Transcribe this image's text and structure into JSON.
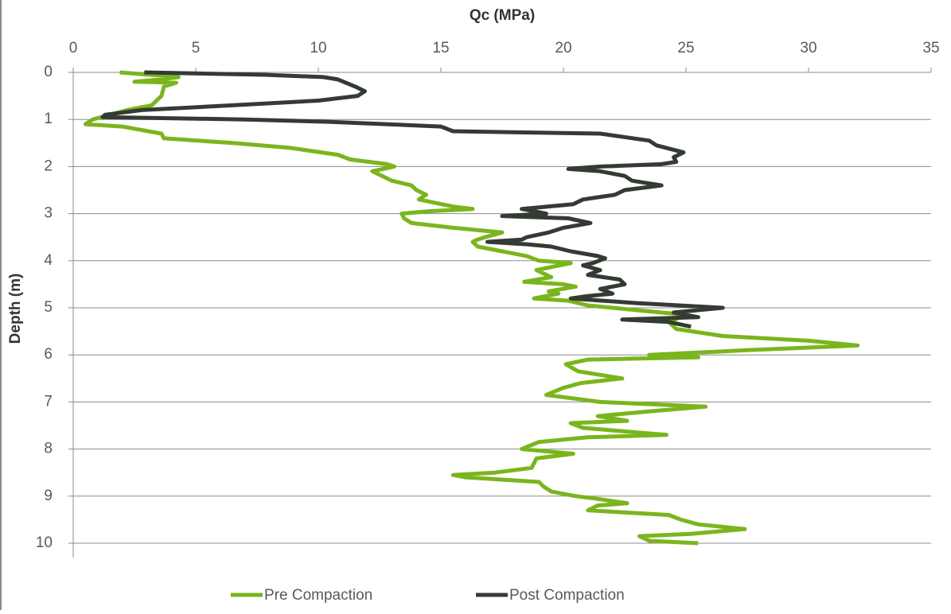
{
  "chart_data": {
    "type": "line",
    "title": "Qc (MPa)",
    "y_label": "Depth (m)",
    "xlim": [
      0,
      35
    ],
    "xticks": [
      0,
      5,
      10,
      15,
      20,
      25,
      30,
      35
    ],
    "ylim": [
      0,
      10
    ],
    "yticks": [
      0,
      1,
      2,
      3,
      4,
      5,
      6,
      7,
      8,
      9,
      10
    ],
    "y_inverted": true,
    "x_axis_top": true,
    "grid": true,
    "series": [
      {
        "name": "Pre Compaction",
        "color": "#7ab51d",
        "y": [
          0.0,
          0.1,
          0.15,
          0.2,
          0.22,
          0.3,
          0.5,
          0.7,
          0.8,
          0.9,
          1.0,
          1.1,
          1.15,
          1.3,
          1.4,
          1.5,
          1.6,
          1.75,
          1.85,
          1.95,
          2.0,
          2.1,
          2.3,
          2.4,
          2.5,
          2.6,
          2.7,
          2.85,
          2.9,
          2.95,
          3.0,
          3.1,
          3.2,
          3.3,
          3.4,
          3.5,
          3.55,
          3.6,
          3.7,
          3.8,
          3.9,
          4.0,
          4.05,
          4.2,
          4.35,
          4.45,
          4.5,
          4.55,
          4.65,
          4.7,
          4.8,
          4.85,
          4.95,
          5.05,
          5.15,
          5.3,
          5.45,
          5.6,
          5.7,
          5.8,
          5.9,
          6.0,
          6.05,
          6.1,
          6.2,
          6.35,
          6.5,
          6.6,
          6.7,
          6.85,
          7.0,
          7.1,
          7.2,
          7.3,
          7.4,
          7.45,
          7.55,
          7.7,
          7.75,
          7.85,
          8.0,
          8.1,
          8.2,
          8.4,
          8.5,
          8.55,
          8.6,
          8.7,
          8.8,
          8.9,
          9.0,
          9.05,
          9.15,
          9.2,
          9.3,
          9.4,
          9.5,
          9.6,
          9.7,
          9.8,
          9.85,
          9.95,
          10.0
        ],
        "x": [
          1.9,
          4.3,
          3.6,
          2.5,
          4.2,
          3.7,
          3.6,
          3.2,
          2.2,
          1.5,
          0.8,
          0.5,
          2.0,
          3.6,
          3.7,
          6.5,
          8.8,
          10.8,
          11.3,
          12.8,
          13.1,
          12.2,
          13.0,
          13.8,
          14.0,
          14.4,
          14.1,
          15.5,
          16.3,
          14.5,
          13.4,
          13.5,
          13.8,
          15.5,
          17.5,
          16.8,
          16.5,
          16.3,
          16.5,
          17.5,
          18.5,
          19.0,
          20.3,
          18.9,
          19.5,
          18.4,
          20.0,
          20.5,
          19.4,
          19.8,
          18.8,
          20.2,
          21.0,
          23.0,
          25.0,
          24.3,
          24.6,
          26.5,
          30.0,
          32.0,
          27.5,
          23.5,
          25.5,
          21.0,
          20.1,
          20.6,
          22.4,
          20.7,
          20.0,
          19.3,
          21.5,
          25.8,
          23.5,
          21.4,
          22.6,
          20.3,
          20.8,
          24.2,
          21.0,
          19.0,
          18.3,
          20.4,
          18.9,
          18.7,
          17.2,
          15.5,
          16.0,
          19.0,
          19.2,
          19.5,
          20.5,
          21.3,
          22.6,
          21.4,
          21.0,
          24.3,
          24.8,
          25.5,
          27.4,
          25.2,
          23.1,
          23.5,
          25.5
        ]
      },
      {
        "name": "Post Compaction",
        "color": "#333b33",
        "y": [
          0.0,
          0.05,
          0.1,
          0.15,
          0.3,
          0.4,
          0.5,
          0.6,
          0.7,
          0.8,
          0.9,
          0.95,
          1.0,
          1.05,
          1.15,
          1.25,
          1.3,
          1.45,
          1.55,
          1.7,
          1.8,
          1.9,
          1.95,
          2.0,
          2.05,
          2.1,
          2.2,
          2.3,
          2.4,
          2.5,
          2.6,
          2.7,
          2.8,
          2.9,
          3.0,
          3.05,
          3.1,
          3.2,
          3.3,
          3.4,
          3.5,
          3.55,
          3.6,
          3.65,
          3.7,
          3.8,
          3.9,
          3.95,
          4.05,
          4.1,
          4.2,
          4.3,
          4.4,
          4.5,
          4.6,
          4.7,
          4.75,
          4.8,
          4.9,
          5.0,
          5.1,
          5.2,
          5.25,
          5.3,
          5.4
        ],
        "x": [
          2.9,
          7.8,
          10.2,
          10.8,
          11.5,
          11.9,
          11.6,
          10.0,
          6.5,
          2.8,
          1.3,
          1.2,
          7.0,
          10.5,
          15.0,
          15.5,
          21.5,
          23.5,
          23.8,
          24.9,
          24.5,
          24.6,
          24.0,
          21.5,
          20.2,
          21.5,
          22.5,
          22.8,
          24.0,
          22.5,
          22.1,
          20.8,
          20.4,
          18.3,
          19.3,
          17.5,
          20.2,
          21.1,
          20.0,
          19.4,
          18.5,
          18.3,
          16.9,
          18.5,
          19.5,
          20.3,
          21.4,
          21.7,
          21.2,
          20.8,
          21.5,
          21.0,
          22.3,
          22.5,
          21.5,
          22.0,
          21.0,
          20.3,
          23.0,
          26.5,
          24.5,
          25.5,
          22.4,
          24.3,
          25.2
        ]
      }
    ]
  }
}
